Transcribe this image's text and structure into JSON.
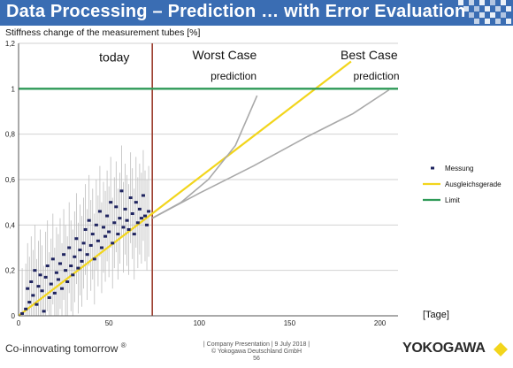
{
  "slide": {
    "title": "Data Processing – Prediction … with Error Evaluation",
    "tagline": "Co-innovating tomorrow",
    "tagline_mark": "®",
    "footer_line1": "| Company Presentation | 9 July 2018 |",
    "footer_line2": "© Yokogawa Deutschland GmbH",
    "page_number": "56",
    "brand": "YOKOGAWA"
  },
  "colors": {
    "title_bar": "#3a6db3",
    "measurement": "#1f2460",
    "regression": "#f2d51c",
    "limit": "#2e9a57",
    "prediction": "#a9a9a9",
    "today": "#9c3d2d",
    "brand_mark": "#f2d51c"
  },
  "chart_data": {
    "type": "scatter",
    "ylabel": "Stiffness change of the measurement tubes  [%]",
    "xlabel": "[Tage]",
    "xlim": [
      0,
      210
    ],
    "ylim": [
      0,
      1.2
    ],
    "x_ticks": [
      0,
      50,
      100,
      150,
      200
    ],
    "y_ticks": [
      "0",
      "0,2",
      "0,4",
      "0,6",
      "0,8",
      "1",
      "1,2"
    ],
    "grid": "horizontal",
    "legend_position": "right",
    "today_x": 74,
    "annotations": [
      {
        "text": "today",
        "x": 53,
        "y": 1.12
      },
      {
        "text": "Worst Case",
        "x": 114,
        "y": 1.13
      },
      {
        "text": "prediction",
        "x": 119,
        "y": 1.04
      },
      {
        "text": "Best Case",
        "x": 194,
        "y": 1.13
      },
      {
        "text": "prediction",
        "x": 198,
        "y": 1.04
      }
    ],
    "series": [
      {
        "name": "Messung",
        "kind": "scatter_errorbar",
        "error": 0.2,
        "points": [
          [
            2,
            0.01
          ],
          [
            4,
            0.03
          ],
          [
            5,
            0.12
          ],
          [
            6,
            0.06
          ],
          [
            7,
            0.15
          ],
          [
            8,
            0.09
          ],
          [
            9,
            0.2
          ],
          [
            10,
            0.05
          ],
          [
            11,
            0.13
          ],
          [
            12,
            0.18
          ],
          [
            13,
            0.11
          ],
          [
            14,
            0.02
          ],
          [
            15,
            0.17
          ],
          [
            16,
            0.22
          ],
          [
            17,
            0.08
          ],
          [
            18,
            0.14
          ],
          [
            19,
            0.25
          ],
          [
            20,
            0.1
          ],
          [
            21,
            0.19
          ],
          [
            22,
            0.16
          ],
          [
            23,
            0.23
          ],
          [
            24,
            0.12
          ],
          [
            25,
            0.27
          ],
          [
            26,
            0.2
          ],
          [
            27,
            0.15
          ],
          [
            28,
            0.3
          ],
          [
            29,
            0.22
          ],
          [
            30,
            0.18
          ],
          [
            31,
            0.26
          ],
          [
            32,
            0.34
          ],
          [
            33,
            0.21
          ],
          [
            34,
            0.29
          ],
          [
            35,
            0.24
          ],
          [
            36,
            0.32
          ],
          [
            37,
            0.38
          ],
          [
            38,
            0.27
          ],
          [
            39,
            0.42
          ],
          [
            40,
            0.31
          ],
          [
            41,
            0.36
          ],
          [
            42,
            0.25
          ],
          [
            43,
            0.4
          ],
          [
            44,
            0.33
          ],
          [
            45,
            0.46
          ],
          [
            46,
            0.3
          ],
          [
            47,
            0.39
          ],
          [
            48,
            0.35
          ],
          [
            49,
            0.44
          ],
          [
            50,
            0.37
          ],
          [
            51,
            0.5
          ],
          [
            52,
            0.32
          ],
          [
            53,
            0.41
          ],
          [
            54,
            0.48
          ],
          [
            55,
            0.36
          ],
          [
            56,
            0.43
          ],
          [
            57,
            0.55
          ],
          [
            58,
            0.39
          ],
          [
            59,
            0.47
          ],
          [
            60,
            0.42
          ],
          [
            61,
            0.38
          ],
          [
            62,
            0.52
          ],
          [
            63,
            0.45
          ],
          [
            64,
            0.36
          ],
          [
            65,
            0.5
          ],
          [
            66,
            0.41
          ],
          [
            67,
            0.47
          ],
          [
            68,
            0.43
          ],
          [
            69,
            0.53
          ],
          [
            70,
            0.44
          ],
          [
            71,
            0.4
          ],
          [
            72,
            0.46
          ]
        ]
      },
      {
        "name": "Ausgleichsgerade",
        "kind": "line",
        "x": [
          0,
          184
        ],
        "y": [
          0,
          1.12
        ]
      },
      {
        "name": "Limit",
        "kind": "hline",
        "y": 1.0
      },
      {
        "name": "",
        "kind": "prediction_worst",
        "x": [
          74,
          90,
          105,
          120,
          132
        ],
        "y": [
          0.43,
          0.5,
          0.6,
          0.75,
          0.97
        ]
      },
      {
        "name": "",
        "kind": "prediction_best",
        "x": [
          74,
          100,
          130,
          160,
          185,
          205
        ],
        "y": [
          0.43,
          0.54,
          0.66,
          0.79,
          0.89,
          0.995
        ]
      }
    ]
  }
}
